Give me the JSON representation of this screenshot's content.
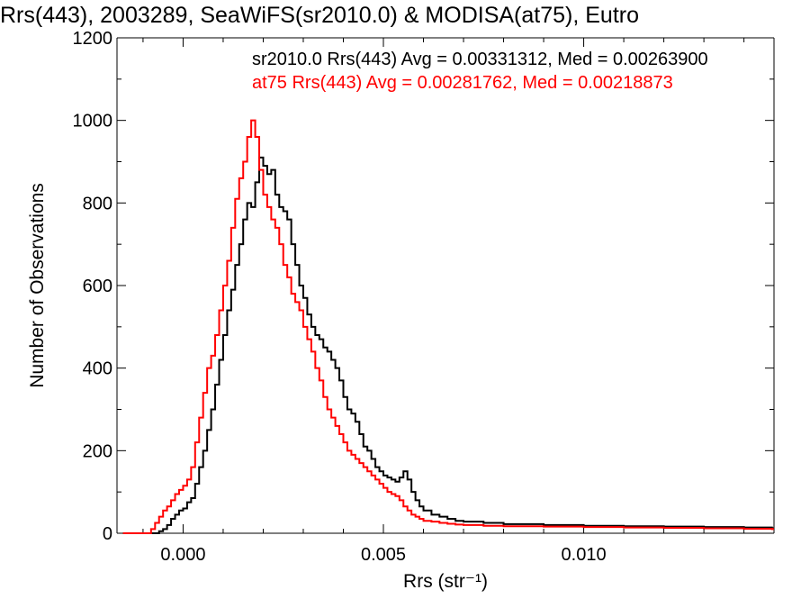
{
  "chart_data": {
    "type": "line",
    "title": "Rrs(443), 2003289, SeaWiFS(sr2010.0) & MODISA(at75), Eutro",
    "xlabel": "Rrs (str⁻¹)",
    "ylabel": "Number of Observations",
    "xlim": [
      -0.00165,
      0.01475
    ],
    "ylim": [
      0,
      1200
    ],
    "x_ticks": [
      0.0,
      0.005,
      0.01
    ],
    "x_tick_labels": [
      "0.000",
      "0.005",
      "0.010"
    ],
    "y_ticks": [
      0,
      200,
      400,
      600,
      800,
      1000,
      1200
    ],
    "y_tick_labels": [
      "0",
      "200",
      "400",
      "600",
      "800",
      "1000",
      "1200"
    ],
    "grid": false,
    "legend_placement": "top-right",
    "series": [
      {
        "color": "#000000",
        "annotation": "sr2010.0 Rrs(443) Avg = 0.00331312, Med = 0.00263900",
        "x": [
          -0.0015,
          -0.0008,
          -0.0006,
          -0.0005,
          -0.0004,
          -0.0003,
          -0.0002,
          -0.0001,
          0.0,
          0.0001,
          0.0002,
          0.0003,
          0.0004,
          0.0005,
          0.0006,
          0.0007,
          0.0008,
          0.0009,
          0.001,
          0.0011,
          0.0012,
          0.0013,
          0.0014,
          0.0015,
          0.0016,
          0.0017,
          0.0018,
          0.0019,
          0.002,
          0.0021,
          0.0022,
          0.0023,
          0.0024,
          0.0025,
          0.0026,
          0.0027,
          0.0028,
          0.0029,
          0.003,
          0.0031,
          0.0032,
          0.0033,
          0.0034,
          0.0035,
          0.0036,
          0.0037,
          0.0038,
          0.0039,
          0.004,
          0.0041,
          0.0042,
          0.0043,
          0.0044,
          0.0045,
          0.0046,
          0.0047,
          0.0048,
          0.0049,
          0.005,
          0.0051,
          0.0052,
          0.0053,
          0.0054,
          0.0055,
          0.0056,
          0.0057,
          0.0058,
          0.0059,
          0.006,
          0.0062,
          0.0064,
          0.0066,
          0.0068,
          0.007,
          0.0075,
          0.008,
          0.009,
          0.01,
          0.011,
          0.012,
          0.013,
          0.014,
          0.0147
        ],
        "y": [
          0,
          0,
          5,
          10,
          20,
          35,
          45,
          55,
          60,
          75,
          85,
          120,
          160,
          200,
          250,
          300,
          360,
          420,
          480,
          540,
          590,
          650,
          700,
          760,
          800,
          790,
          850,
          910,
          890,
          870,
          880,
          820,
          790,
          780,
          760,
          700,
          650,
          600,
          570,
          530,
          500,
          480,
          470,
          450,
          440,
          420,
          400,
          370,
          330,
          300,
          290,
          270,
          240,
          210,
          200,
          180,
          160,
          150,
          140,
          135,
          130,
          125,
          135,
          150,
          130,
          100,
          80,
          65,
          55,
          45,
          40,
          35,
          30,
          28,
          25,
          22,
          20,
          18,
          17,
          16,
          15,
          14,
          12
        ]
      },
      {
        "color": "#ff0000",
        "annotation": "at75 Rrs(443) Avg = 0.00281762, Med = 0.00218873",
        "x": [
          -0.0015,
          -0.0009,
          -0.0008,
          -0.0007,
          -0.0006,
          -0.0005,
          -0.0004,
          -0.0003,
          -0.0002,
          -0.0001,
          0.0,
          0.0001,
          0.0002,
          0.0003,
          0.0004,
          0.0005,
          0.0006,
          0.0007,
          0.0008,
          0.0009,
          0.001,
          0.0011,
          0.0012,
          0.0013,
          0.0014,
          0.0015,
          0.0016,
          0.0017,
          0.0018,
          0.0019,
          0.002,
          0.0021,
          0.0022,
          0.0023,
          0.0024,
          0.0025,
          0.0026,
          0.0027,
          0.0028,
          0.0029,
          0.003,
          0.0031,
          0.0032,
          0.0033,
          0.0034,
          0.0035,
          0.0036,
          0.0037,
          0.0038,
          0.0039,
          0.004,
          0.0041,
          0.0042,
          0.0043,
          0.0044,
          0.0045,
          0.0046,
          0.0047,
          0.0048,
          0.0049,
          0.005,
          0.0051,
          0.0052,
          0.0053,
          0.0054,
          0.0055,
          0.0056,
          0.0057,
          0.0058,
          0.0059,
          0.006,
          0.0062,
          0.0064,
          0.0066,
          0.0068,
          0.007,
          0.0075,
          0.008,
          0.009,
          0.01,
          0.011,
          0.012,
          0.013,
          0.014,
          0.0147
        ],
        "y": [
          0,
          0,
          10,
          25,
          40,
          55,
          65,
          80,
          95,
          105,
          115,
          130,
          160,
          220,
          280,
          340,
          400,
          430,
          480,
          540,
          600,
          660,
          740,
          810,
          860,
          900,
          960,
          1000,
          960,
          880,
          820,
          790,
          760,
          740,
          700,
          650,
          620,
          580,
          560,
          540,
          500,
          470,
          440,
          400,
          370,
          330,
          300,
          280,
          260,
          240,
          220,
          200,
          190,
          180,
          170,
          160,
          150,
          140,
          130,
          120,
          110,
          100,
          95,
          90,
          80,
          65,
          55,
          45,
          40,
          35,
          30,
          28,
          25,
          23,
          21,
          20,
          18,
          17,
          16,
          15,
          14,
          13,
          12,
          11,
          10
        ]
      }
    ]
  }
}
